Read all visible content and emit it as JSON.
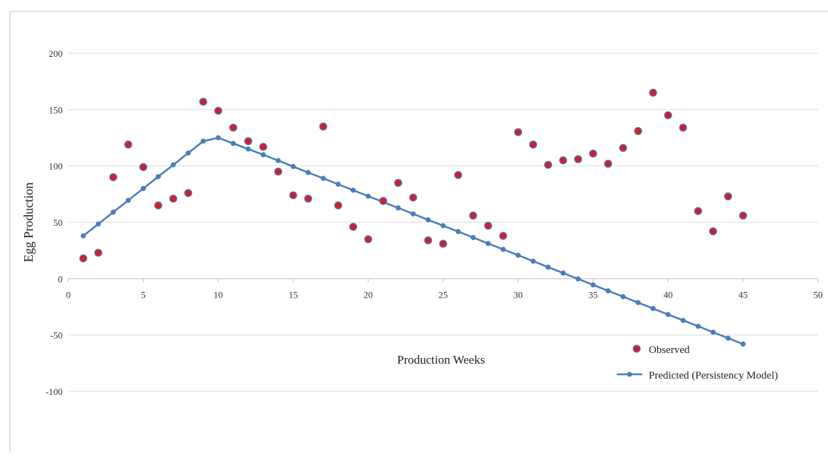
{
  "chart_data": {
    "type": "scatter",
    "title": "",
    "xlabel": "Production Weeks",
    "ylabel": "Egg Production",
    "xlim": [
      0,
      50
    ],
    "ylim": [
      -100,
      200
    ],
    "xticks": [
      0,
      5,
      10,
      15,
      20,
      25,
      30,
      35,
      40,
      45,
      50
    ],
    "yticks": [
      -100,
      -50,
      0,
      50,
      100,
      150,
      200
    ],
    "grid": "horizontal",
    "legend_position": "bottom-right",
    "series": [
      {
        "name": "Observed",
        "kind": "markers",
        "color": "#d01f2c",
        "edge_color": "#4a7ebb",
        "x": [
          1,
          2,
          3,
          4,
          5,
          6,
          7,
          8,
          9,
          10,
          11,
          12,
          13,
          14,
          15,
          16,
          17,
          18,
          19,
          20,
          21,
          22,
          23,
          24,
          25,
          26,
          27,
          28,
          29,
          30,
          31,
          32,
          33,
          34,
          35,
          36,
          37,
          38,
          39,
          40,
          41,
          42,
          43,
          44,
          45
        ],
        "y": [
          18,
          23,
          90,
          119,
          99,
          65,
          71,
          76,
          157,
          149,
          134,
          122,
          117,
          95,
          74,
          71,
          135,
          65,
          46,
          35,
          69,
          85,
          72,
          34,
          31,
          92,
          56,
          47,
          38,
          130,
          119,
          101,
          105,
          106,
          111,
          102,
          116,
          131,
          165,
          145,
          134,
          60,
          42,
          73,
          56
        ]
      },
      {
        "name": "Predicted (Persistency Model)",
        "kind": "line-markers",
        "color": "#4a7ebb",
        "x": [
          1,
          2,
          3,
          4,
          5,
          6,
          7,
          8,
          9,
          10,
          11,
          12,
          13,
          14,
          15,
          16,
          17,
          18,
          19,
          20,
          21,
          22,
          23,
          24,
          25,
          26,
          27,
          28,
          29,
          30,
          31,
          32,
          33,
          34,
          35,
          36,
          37,
          38,
          39,
          40,
          41,
          42,
          43,
          44,
          45
        ],
        "y": [
          38,
          48.5,
          59,
          69.5,
          80,
          90.5,
          101,
          111.5,
          122,
          125,
          120,
          115,
          110,
          104.8,
          99.5,
          94.2,
          89,
          83.8,
          78.5,
          73.2,
          68,
          62.8,
          57.5,
          52.2,
          47,
          41.8,
          36.5,
          31.2,
          26,
          20.8,
          15.5,
          10.2,
          5,
          -0.2,
          -5.5,
          -10.8,
          -16,
          -21.2,
          -26.5,
          -31.8,
          -37,
          -42.2,
          -47.5,
          -52.8,
          -58
        ]
      }
    ]
  }
}
